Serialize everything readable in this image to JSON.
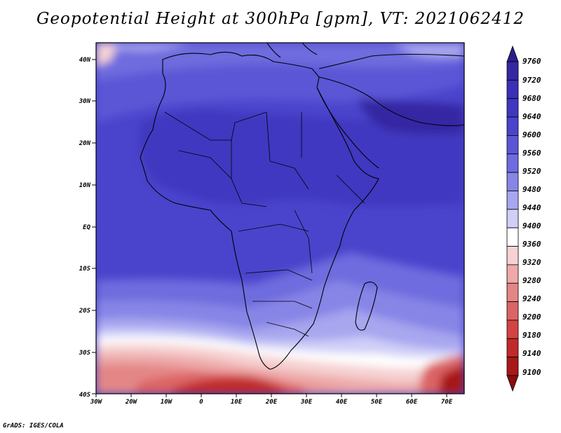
{
  "title": "Geopotential Height at 300hPa [gpm], VT: 2021062412",
  "map": {
    "lat_labels": [
      "40N",
      "30N",
      "20N",
      "10N",
      "EQ",
      "10S",
      "20S",
      "30S",
      "40S"
    ],
    "lon_labels": [
      "30W",
      "20W",
      "10W",
      "0",
      "10E",
      "20E",
      "30E",
      "40E",
      "50E",
      "60E",
      "70E"
    ],
    "lat_range": [
      -40,
      45
    ],
    "lon_range": [
      -30,
      75
    ],
    "field": "Geopotential Height at 300hPa",
    "units": "gpm"
  },
  "colorbar": {
    "levels": [
      "9760",
      "9720",
      "9680",
      "9640",
      "9600",
      "9560",
      "9520",
      "9480",
      "9440",
      "9400",
      "9360",
      "9320",
      "9280",
      "9240",
      "9200",
      "9180",
      "9140",
      "9100"
    ],
    "colors": [
      "#2a1f8a",
      "#3427a3",
      "#3b30b5",
      "#4037c0",
      "#4a44cc",
      "#5a57d6",
      "#6e6cde",
      "#8785e6",
      "#a7a6ef",
      "#cfcff8",
      "#ffffff",
      "#f6d2d2",
      "#eeaaaa",
      "#e48686",
      "#dc6464",
      "#d24444",
      "#c02a2a",
      "#a81818",
      "#8b0d0d"
    ]
  },
  "credit": "GrADS: IGES/COLA"
}
